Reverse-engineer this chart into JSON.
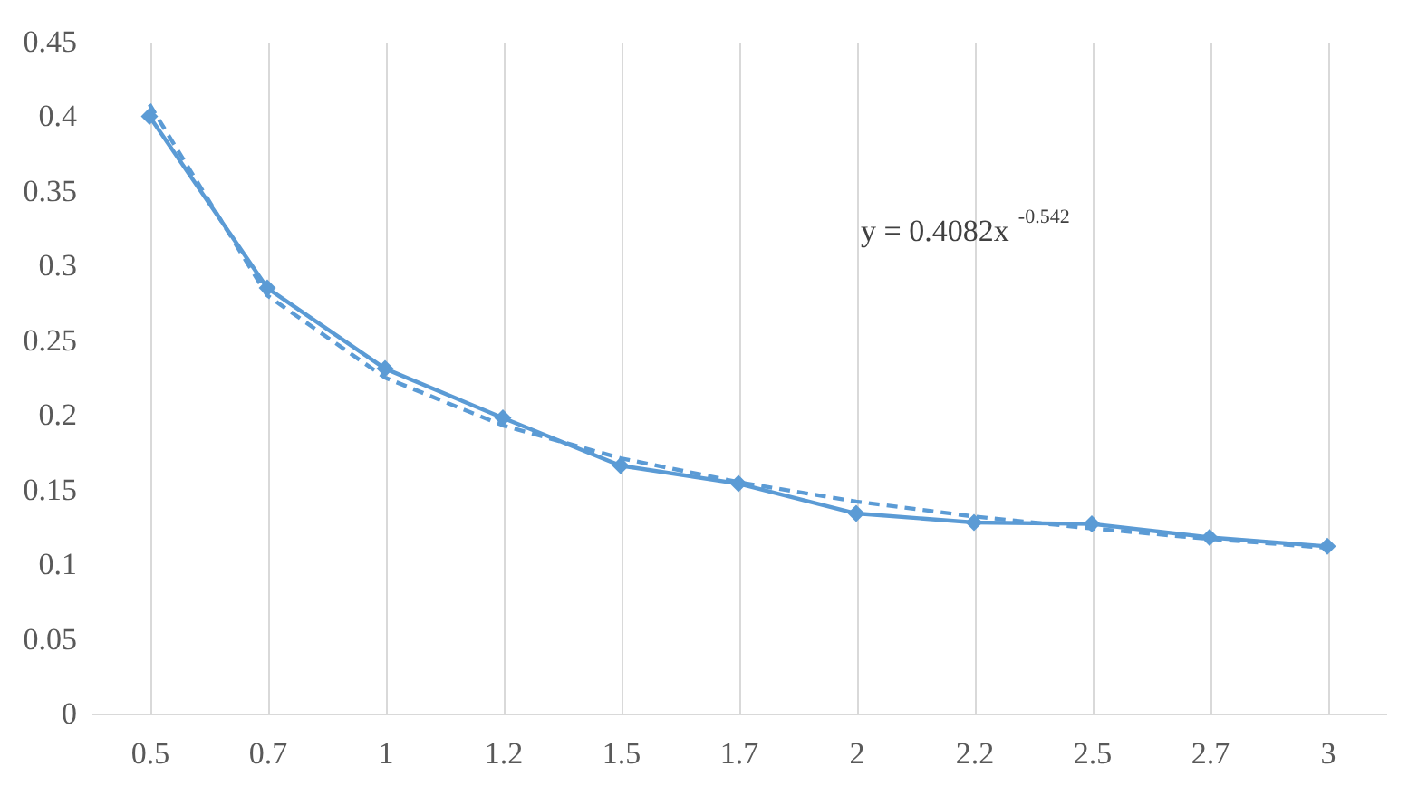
{
  "chart_data": {
    "type": "line",
    "categories": [
      "0.5",
      "0.7",
      "1",
      "1.2",
      "1.5",
      "1.7",
      "2",
      "2.2",
      "2.5",
      "2.7",
      "3"
    ],
    "series": [
      {
        "color": "#5b9bd5",
        "marker": "diamond",
        "line_style": "solid",
        "values": [
          0.4,
          0.285,
          0.231,
          0.198,
          0.166,
          0.154,
          0.134,
          0.128,
          0.127,
          0.118,
          0.112
        ]
      },
      {
        "color": "#5b9bd5",
        "marker": "none",
        "line_style": "dashed",
        "values": [
          0.408,
          0.28,
          0.225,
          0.193,
          0.171,
          0.155,
          0.142,
          0.132,
          0.124,
          0.117,
          0.111
        ]
      }
    ],
    "ylim": [
      0,
      0.45
    ],
    "yticks": [
      0,
      0.05,
      0.1,
      0.15,
      0.2,
      0.25,
      0.3,
      0.35,
      0.4,
      0.45
    ],
    "grid": "x",
    "annotations": [
      "y = 0.4082x$^{-0.542}$"
    ]
  }
}
